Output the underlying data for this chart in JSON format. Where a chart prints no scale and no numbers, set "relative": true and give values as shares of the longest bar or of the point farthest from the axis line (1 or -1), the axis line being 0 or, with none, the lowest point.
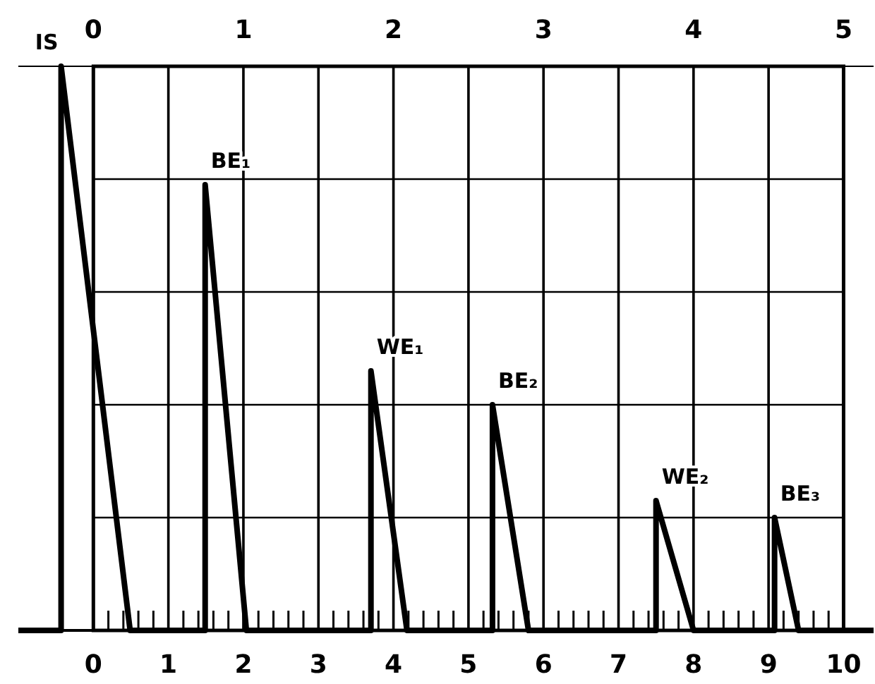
{
  "chart_data": {
    "type": "line",
    "relative": true,
    "grid": true,
    "marker": "none",
    "line_style": "solid",
    "x": [
      -1,
      -0.43,
      -0.43,
      0.49,
      1.49,
      1.49,
      2.04,
      3.7,
      3.7,
      4.18,
      5.32,
      5.32,
      5.8,
      7.5,
      7.5,
      8.0,
      9.08,
      9.08,
      9.4,
      10.4
    ],
    "series": [
      {
        "color": "#000000",
        "values": [
          0,
          0,
          1,
          0,
          0,
          0.79,
          0,
          0,
          0.46,
          0,
          0,
          0.4,
          0,
          0,
          0.23,
          0,
          0,
          0.2,
          0,
          0
        ]
      }
    ],
    "xlim": [
      -1,
      10.4
    ],
    "xticks": [
      0,
      {
        "value": 0.2,
        "label": null
      },
      {
        "value": 0.4,
        "label": null
      },
      {
        "value": 0.6,
        "label": null
      },
      {
        "value": 0.8,
        "label": null
      },
      1,
      {
        "value": 1.2,
        "label": null
      },
      {
        "value": 1.4,
        "label": null
      },
      {
        "value": 1.6,
        "label": null
      },
      {
        "value": 1.8,
        "label": null
      },
      2,
      {
        "value": 2.2,
        "label": null
      },
      {
        "value": 2.4,
        "label": null
      },
      {
        "value": 2.6,
        "label": null
      },
      {
        "value": 2.8,
        "label": null
      },
      3,
      {
        "value": 3.2,
        "label": null
      },
      {
        "value": 3.4,
        "label": null
      },
      {
        "value": 3.6,
        "label": null
      },
      {
        "value": 3.8,
        "label": null
      },
      4,
      {
        "value": 4.2,
        "label": null
      },
      {
        "value": 4.4,
        "label": null
      },
      {
        "value": 4.6,
        "label": null
      },
      {
        "value": 4.8,
        "label": null
      },
      5,
      {
        "value": 5.2,
        "label": null
      },
      {
        "value": 5.4,
        "label": null
      },
      {
        "value": 5.6,
        "label": null
      },
      {
        "value": 5.8,
        "label": null
      },
      6,
      {
        "value": 6.2,
        "label": null
      },
      {
        "value": 6.4,
        "label": null
      },
      {
        "value": 6.6,
        "label": null
      },
      {
        "value": 6.8,
        "label": null
      },
      7,
      {
        "value": 7.2,
        "label": null
      },
      {
        "value": 7.4,
        "label": null
      },
      {
        "value": 7.6,
        "label": null
      },
      {
        "value": 7.8,
        "label": null
      },
      8,
      {
        "value": 8.2,
        "label": null
      },
      {
        "value": 8.4,
        "label": null
      },
      {
        "value": 8.6,
        "label": null
      },
      {
        "value": 8.8,
        "label": null
      },
      9,
      {
        "value": 9.2,
        "label": null
      },
      {
        "value": 9.4,
        "label": null
      },
      {
        "value": 9.6,
        "label": null
      },
      {
        "value": 9.8,
        "label": null
      },
      10
    ],
    "x2lim": [
      -0.5,
      5.2
    ],
    "x2ticks": [
      0,
      1,
      2,
      3,
      4,
      5
    ],
    "annotations": [
      {
        "text": "IS",
        "x": -0.43,
        "y": 1
      },
      {
        "text": "BE₁",
        "x": 1.49,
        "y": 0.79
      },
      {
        "text": "WE₁",
        "x": 3.7,
        "y": 0.46
      },
      {
        "text": "BE₂",
        "x": 5.32,
        "y": 0.4
      },
      {
        "text": "WE₂",
        "x": 7.5,
        "y": 0.23
      },
      {
        "text": "BE₃",
        "x": 9.08,
        "y": 0.2
      }
    ]
  }
}
